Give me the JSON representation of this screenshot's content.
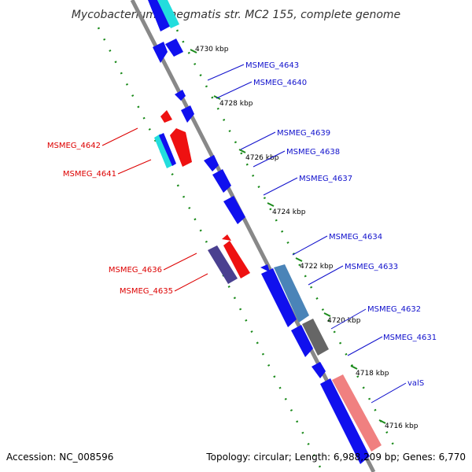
{
  "title": "Mycobacterium smegmatis str. MC2 155, complete genome",
  "footer": {
    "accession": "Accession: NC_008596",
    "topology": "Topology: circular; Length: 6,988,209 bp; Genes: 6,770"
  },
  "colors": {
    "backbone": "#888888",
    "tick": "#1a8a1a",
    "forward_label": "#1010cc",
    "reverse_label": "#dd0000",
    "forward_gene": "#1010ee",
    "reverse_gene": "#ee1111",
    "cyan_feature": "#22dddd",
    "steelblue_feature": "#4a84b8",
    "gray_feature": "#666666",
    "salmon_feature": "#f08080",
    "purple_feature": "#4a4090"
  },
  "ticks": [
    "4730 kbp",
    "4728 kbp",
    "4726 kbp",
    "4724 kbp",
    "4722 kbp",
    "4720 kbp",
    "4718 kbp",
    "4716 kbp"
  ],
  "forward_labels": [
    "MSMEG_4643",
    "MSMEG_4640",
    "MSMEG_4639",
    "MSMEG_4638",
    "MSMEG_4637",
    "MSMEG_4634",
    "MSMEG_4633",
    "MSMEG_4632",
    "MSMEG_4631",
    "valS"
  ],
  "reverse_labels": [
    "MSMEG_4642",
    "MSMEG_4641",
    "MSMEG_4636",
    "MSMEG_4635"
  ]
}
